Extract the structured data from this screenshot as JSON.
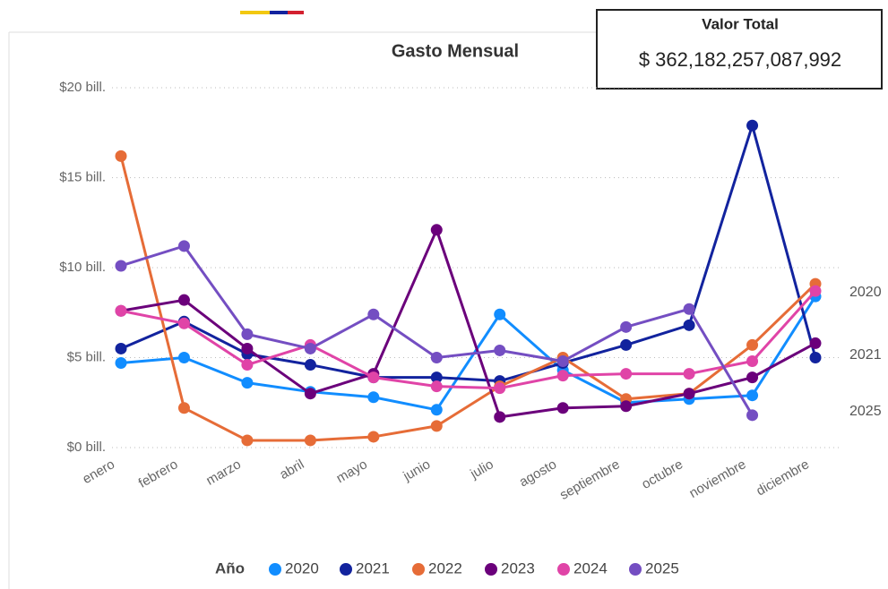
{
  "chart_data": {
    "type": "line",
    "title": "Gasto Mensual",
    "categories": [
      "enero",
      "febrero",
      "marzo",
      "abril",
      "mayo",
      "junio",
      "julio",
      "agosto",
      "septiembre",
      "octubre",
      "noviembre",
      "diciembre"
    ],
    "legend_title": "Año",
    "series": [
      {
        "name": "2020",
        "color": "#118DFF",
        "values": [
          4.7,
          5.0,
          3.6,
          3.1,
          2.8,
          2.1,
          7.4,
          4.3,
          2.5,
          2.7,
          2.9,
          8.4
        ]
      },
      {
        "name": "2021",
        "color": "#12239E",
        "values": [
          5.5,
          7.0,
          5.2,
          4.6,
          3.9,
          3.9,
          3.7,
          4.7,
          5.7,
          6.8,
          17.9,
          5.0
        ]
      },
      {
        "name": "2022",
        "color": "#E66C37",
        "values": [
          16.2,
          2.2,
          0.4,
          0.4,
          0.6,
          1.2,
          3.4,
          5.0,
          2.7,
          3.0,
          5.7,
          9.1
        ]
      },
      {
        "name": "2023",
        "color": "#6B007B",
        "values": [
          7.6,
          8.2,
          5.5,
          3.0,
          4.1,
          12.1,
          1.7,
          2.2,
          2.3,
          3.0,
          3.9,
          5.8
        ]
      },
      {
        "name": "2024",
        "color": "#E044A7",
        "values": [
          7.6,
          6.9,
          4.6,
          5.7,
          3.9,
          3.4,
          3.3,
          4.0,
          4.1,
          4.1,
          4.8,
          8.7
        ]
      },
      {
        "name": "2025",
        "color": "#744EC2",
        "values": [
          10.1,
          11.2,
          6.3,
          5.5,
          7.4,
          5.0,
          5.4,
          4.8,
          6.7,
          7.7,
          1.8,
          null
        ]
      }
    ],
    "ylim": [
      0,
      20
    ],
    "yticks": [
      {
        "value": 0,
        "label": "$0 bill."
      },
      {
        "value": 5,
        "label": "$5 bill."
      },
      {
        "value": 10,
        "label": "$10 bill."
      },
      {
        "value": 15,
        "label": "$15 bill."
      },
      {
        "value": 20,
        "label": "$20 bill."
      }
    ],
    "grid": true
  },
  "card": {
    "title": "Valor Total",
    "value": "$ 362,182,257,087,992"
  }
}
